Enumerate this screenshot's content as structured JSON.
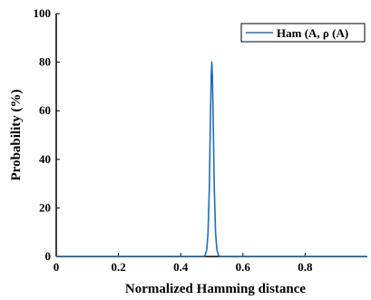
{
  "chart_data": {
    "type": "line",
    "title": "",
    "xlabel": "Normalized Hamming distance",
    "ylabel": "Probability (%)",
    "xlim": [
      0,
      1
    ],
    "ylim": [
      0,
      100
    ],
    "xticks": [
      0,
      0.2,
      0.4,
      0.6,
      0.8
    ],
    "xtick_labels": [
      "0",
      "0.2",
      "0.4",
      "0.6",
      "0.8"
    ],
    "yticks": [
      0,
      20,
      40,
      60,
      80,
      100
    ],
    "ytick_labels": [
      "0",
      "20",
      "40",
      "60",
      "80",
      "100"
    ],
    "grid": false,
    "legend_position": "top-right",
    "series": [
      {
        "name": "Ham (A, ρ (A)",
        "color": "#1f6fb5",
        "x": [
          0.0,
          0.45,
          0.47,
          0.478,
          0.484,
          0.488,
          0.492,
          0.495,
          0.498,
          0.5,
          0.502,
          0.505,
          0.508,
          0.512,
          0.516,
          0.522,
          0.53,
          0.55,
          1.0
        ],
        "y": [
          0,
          0,
          0,
          0.3,
          3,
          10,
          28,
          52,
          74,
          80,
          74,
          52,
          28,
          10,
          3,
          0.3,
          0,
          0,
          0
        ]
      }
    ]
  }
}
